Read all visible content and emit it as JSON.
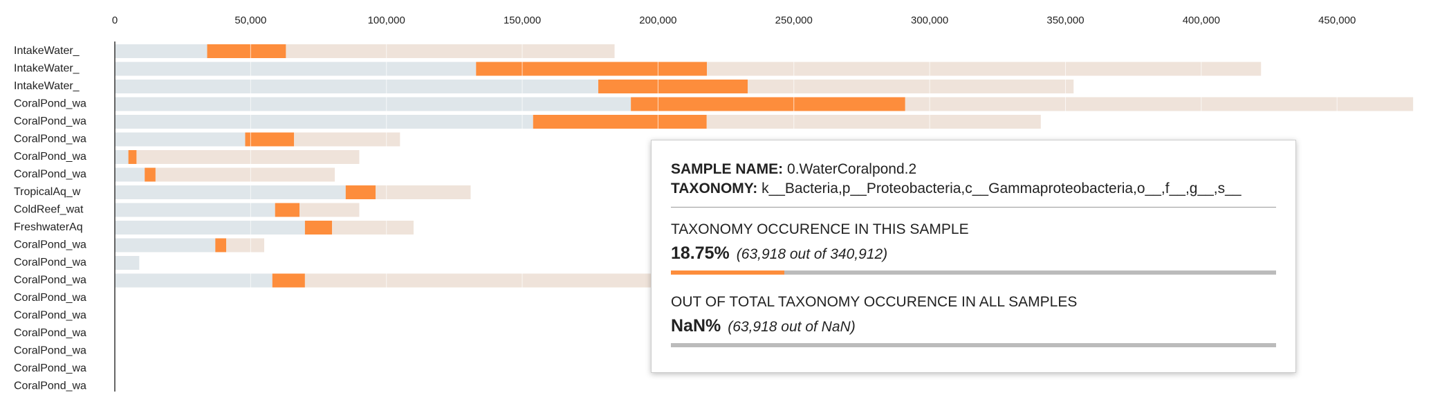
{
  "chart_data": {
    "type": "hbar_stacked",
    "categories": [
      "IntakeWater_",
      "IntakeWater_",
      "IntakeWater_",
      "CoralPond_wa",
      "CoralPond_wa",
      "CoralPond_wa",
      "CoralPond_wa",
      "CoralPond_wa",
      "TropicalAq_w",
      "ColdReef_wat",
      "FreshwaterAq",
      "CoralPond_wa",
      "CoralPond_wa",
      "CoralPond_wa",
      "CoralPond_wa",
      "CoralPond_wa",
      "CoralPond_wa",
      "CoralPond_wa",
      "CoralPond_wa",
      "CoralPond_wa"
    ],
    "series": [
      {
        "color": "#dfe6ea",
        "values": [
          34000,
          133000,
          178000,
          190000,
          154000,
          48000,
          5000,
          11000,
          85000,
          59000,
          70000,
          37000,
          9000,
          58000,
          0,
          0,
          0,
          0,
          0,
          0
        ]
      },
      {
        "color": "#fd8d3c",
        "values": [
          29000,
          85000,
          55000,
          101000,
          63918,
          18000,
          3000,
          4000,
          11000,
          9000,
          10000,
          4000,
          0,
          12000,
          0,
          0,
          0,
          0,
          0,
          0
        ]
      },
      {
        "color": "#efe3da",
        "values": [
          121000,
          204000,
          120000,
          187000,
          123000,
          39000,
          82000,
          66000,
          35000,
          22000,
          30000,
          14000,
          0,
          130000,
          0,
          0,
          0,
          0,
          0,
          0
        ]
      }
    ],
    "xlim": [
      0,
      480000
    ],
    "xticks": [
      0,
      {
        "value": 50000,
        "label": "50,000"
      },
      {
        "value": 100000,
        "label": "100,000"
      },
      {
        "value": 150000,
        "label": "150,000"
      },
      {
        "value": 200000,
        "label": "200,000"
      },
      {
        "value": 250000,
        "label": "250,000"
      },
      {
        "value": 300000,
        "label": "300,000"
      },
      {
        "value": 350000,
        "label": "350,000"
      },
      {
        "value": 400000,
        "label": "400,000"
      },
      {
        "value": 450000,
        "label": "450,000"
      }
    ],
    "grid": true
  },
  "tooltip": {
    "sample_label": "SAMPLE NAME:",
    "sample_name": "0.WaterCoralpond.2",
    "taxonomy_label": "TAXONOMY:",
    "taxonomy": "k__Bacteria,p__Proteobacteria,c__Gammaproteobacteria,o__,f__,g__,s__",
    "sample_heading": "TAXONOMY OCCURENCE IN THIS SAMPLE",
    "sample_percent": {
      "value": 18.75,
      "label": "18.75%"
    },
    "sample_count": "(63,918 out of 340,912)",
    "total_heading": "OUT OF TOTAL TAXONOMY OCCURENCE IN ALL SAMPLES",
    "total_percent": "NaN%",
    "total_count": "(63,918 out of NaN)"
  }
}
